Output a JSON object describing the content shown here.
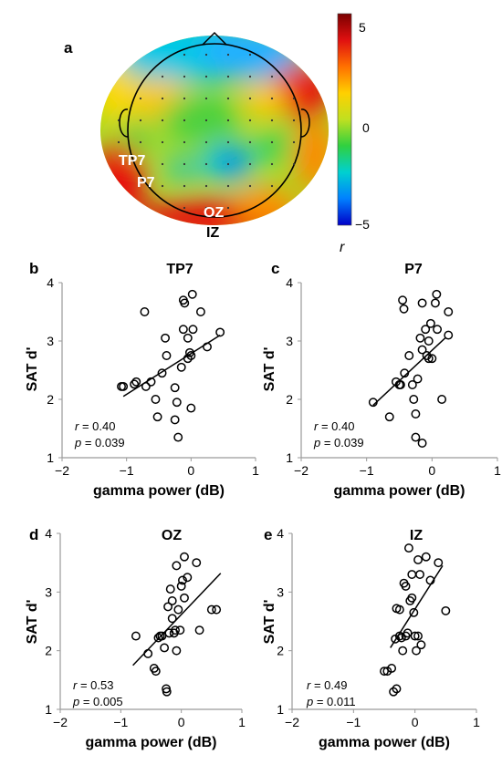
{
  "topomap": {
    "panel_label": "a",
    "electrodes": [
      {
        "label": "TP7",
        "color": "#ffffff"
      },
      {
        "label": "P7",
        "color": "#ffffff"
      },
      {
        "label": "OZ",
        "color": "#ffffff"
      },
      {
        "label": "IZ",
        "color": "#000000"
      }
    ],
    "colorbar": {
      "min": -5,
      "max": 5,
      "ticks": [
        "5",
        "0",
        "−5"
      ],
      "unit_label": "r",
      "colors": [
        "#0000c8",
        "#0080ff",
        "#00d0d0",
        "#30d040",
        "#c0e020",
        "#ffd000",
        "#ff7000",
        "#e01010",
        "#7a0000"
      ]
    }
  },
  "chart_data": [
    {
      "type": "scatter",
      "panel": "b",
      "title": "TP7",
      "xlabel": "gamma power (dB)",
      "ylabel": "SAT d'",
      "xlim": [
        -2,
        1
      ],
      "ylim": [
        1,
        4
      ],
      "xticks": [
        -2,
        -1,
        0,
        1
      ],
      "yticks": [
        1,
        2,
        3,
        4
      ],
      "stats": {
        "r": "0.40",
        "p": "0.039"
      },
      "points": [
        [
          -1.05,
          2.22
        ],
        [
          -1.08,
          2.22
        ],
        [
          -0.88,
          2.26
        ],
        [
          -0.85,
          2.3
        ],
        [
          -0.7,
          2.22
        ],
        [
          -0.62,
          2.3
        ],
        [
          -0.55,
          2.0
        ],
        [
          -0.52,
          1.7
        ],
        [
          -0.45,
          2.45
        ],
        [
          -0.4,
          3.05
        ],
        [
          -0.38,
          2.75
        ],
        [
          -0.25,
          2.2
        ],
        [
          -0.25,
          1.65
        ],
        [
          -0.22,
          1.95
        ],
        [
          -0.2,
          1.35
        ],
        [
          -0.15,
          2.55
        ],
        [
          -0.12,
          3.7
        ],
        [
          -0.12,
          3.2
        ],
        [
          -0.1,
          3.65
        ],
        [
          -0.05,
          3.05
        ],
        [
          -0.05,
          2.7
        ],
        [
          -0.02,
          2.8
        ],
        [
          0.0,
          2.75
        ],
        [
          0.0,
          1.85
        ],
        [
          0.02,
          3.8
        ],
        [
          0.03,
          3.2
        ],
        [
          0.15,
          3.5
        ],
        [
          0.25,
          2.9
        ],
        [
          0.45,
          3.15
        ],
        [
          -0.72,
          3.5
        ]
      ],
      "trendline": [
        [
          -1.05,
          2.05
        ],
        [
          0.45,
          3.1
        ]
      ]
    },
    {
      "type": "scatter",
      "panel": "c",
      "title": "P7",
      "xlabel": "gamma power (dB)",
      "ylabel": "SAT d'",
      "xlim": [
        -2,
        1
      ],
      "ylim": [
        1,
        4
      ],
      "xticks": [
        -2,
        -1,
        0,
        1
      ],
      "yticks": [
        1,
        2,
        3,
        4
      ],
      "stats": {
        "r": "0.40",
        "p": "0.039"
      },
      "points": [
        [
          -0.9,
          1.95
        ],
        [
          -0.65,
          1.7
        ],
        [
          -0.55,
          2.3
        ],
        [
          -0.5,
          2.25
        ],
        [
          -0.48,
          2.25
        ],
        [
          -0.42,
          2.45
        ],
        [
          -0.35,
          2.75
        ],
        [
          -0.3,
          2.25
        ],
        [
          -0.28,
          2.0
        ],
        [
          -0.25,
          1.75
        ],
        [
          -0.25,
          1.35
        ],
        [
          -0.22,
          2.35
        ],
        [
          -0.18,
          3.05
        ],
        [
          -0.15,
          2.85
        ],
        [
          -0.15,
          3.65
        ],
        [
          -0.15,
          1.25
        ],
        [
          -0.1,
          3.2
        ],
        [
          -0.08,
          2.75
        ],
        [
          -0.05,
          3.0
        ],
        [
          -0.05,
          2.7
        ],
        [
          -0.02,
          3.3
        ],
        [
          0.0,
          2.7
        ],
        [
          0.05,
          3.65
        ],
        [
          0.07,
          3.8
        ],
        [
          0.08,
          3.2
        ],
        [
          0.15,
          2.0
        ],
        [
          0.25,
          3.5
        ],
        [
          0.25,
          3.1
        ],
        [
          -0.45,
          3.7
        ],
        [
          -0.43,
          3.55
        ]
      ],
      "trendline": [
        [
          -0.9,
          1.9
        ],
        [
          0.2,
          3.05
        ]
      ]
    },
    {
      "type": "scatter",
      "panel": "d",
      "title": "OZ",
      "xlabel": "gamma power (dB)",
      "ylabel": "SAT d'",
      "xlim": [
        -2,
        1
      ],
      "ylim": [
        1,
        4
      ],
      "xticks": [
        -2,
        -1,
        0,
        1
      ],
      "yticks": [
        1,
        2,
        3,
        4
      ],
      "stats": {
        "r": "0.53",
        "p": "0.005"
      },
      "points": [
        [
          -0.75,
          2.25
        ],
        [
          -0.55,
          1.95
        ],
        [
          -0.45,
          1.7
        ],
        [
          -0.42,
          1.65
        ],
        [
          -0.35,
          2.25
        ],
        [
          -0.32,
          2.25
        ],
        [
          -0.28,
          2.05
        ],
        [
          -0.25,
          1.35
        ],
        [
          -0.24,
          1.3
        ],
        [
          -0.22,
          2.75
        ],
        [
          -0.2,
          2.3
        ],
        [
          -0.18,
          3.05
        ],
        [
          -0.15,
          2.85
        ],
        [
          -0.12,
          2.3
        ],
        [
          -0.1,
          2.35
        ],
        [
          -0.08,
          2.0
        ],
        [
          -0.08,
          3.45
        ],
        [
          -0.05,
          2.7
        ],
        [
          -0.02,
          2.35
        ],
        [
          0.0,
          3.1
        ],
        [
          0.02,
          3.2
        ],
        [
          0.05,
          3.6
        ],
        [
          0.05,
          2.9
        ],
        [
          0.1,
          3.25
        ],
        [
          0.25,
          3.5
        ],
        [
          0.3,
          2.35
        ],
        [
          0.5,
          2.7
        ],
        [
          0.58,
          2.7
        ],
        [
          -0.38,
          2.22
        ],
        [
          -0.15,
          2.55
        ]
      ],
      "trendline": [
        [
          -0.8,
          1.75
        ],
        [
          0.65,
          3.32
        ]
      ]
    },
    {
      "type": "scatter",
      "panel": "e",
      "title": "IZ",
      "xlabel": "gamma power (dB)",
      "ylabel": "SAT d'",
      "xlim": [
        -2,
        1
      ],
      "ylim": [
        1,
        4
      ],
      "xticks": [
        -2,
        -1,
        0,
        1
      ],
      "yticks": [
        1,
        2,
        3,
        4
      ],
      "stats": {
        "r": "0.49",
        "p": "0.011"
      },
      "points": [
        [
          -0.5,
          1.65
        ],
        [
          -0.45,
          1.65
        ],
        [
          -0.38,
          1.7
        ],
        [
          -0.35,
          1.3
        ],
        [
          -0.3,
          1.35
        ],
        [
          -0.3,
          2.72
        ],
        [
          -0.25,
          2.25
        ],
        [
          -0.22,
          2.22
        ],
        [
          -0.2,
          2.0
        ],
        [
          -0.18,
          3.15
        ],
        [
          -0.15,
          3.1
        ],
        [
          -0.15,
          2.25
        ],
        [
          -0.12,
          2.3
        ],
        [
          -0.1,
          3.75
        ],
        [
          -0.08,
          2.85
        ],
        [
          -0.05,
          3.3
        ],
        [
          -0.02,
          2.65
        ],
        [
          0.0,
          2.25
        ],
        [
          0.02,
          2.0
        ],
        [
          0.05,
          3.55
        ],
        [
          0.08,
          3.3
        ],
        [
          0.1,
          2.1
        ],
        [
          0.18,
          3.6
        ],
        [
          0.25,
          3.2
        ],
        [
          0.38,
          3.5
        ],
        [
          0.5,
          2.68
        ],
        [
          -0.25,
          2.7
        ],
        [
          -0.05,
          2.9
        ],
        [
          -0.32,
          2.2
        ],
        [
          0.05,
          2.25
        ]
      ],
      "trendline": [
        [
          -0.4,
          2.05
        ],
        [
          0.45,
          3.45
        ]
      ]
    }
  ]
}
